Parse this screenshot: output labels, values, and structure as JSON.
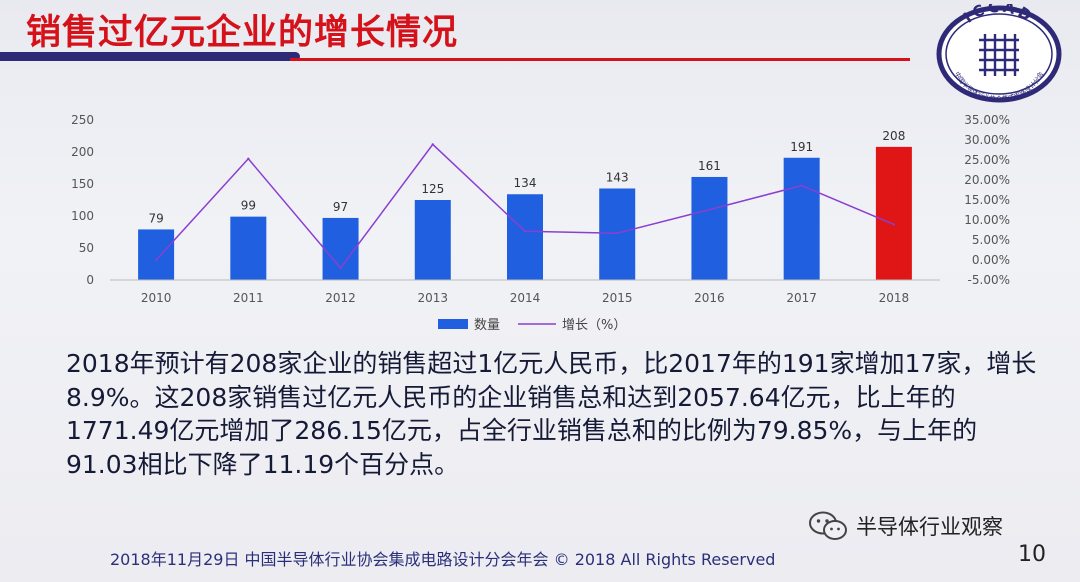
{
  "slide": {
    "title": "销售过亿元企业的增长情况",
    "logo_text": "ICCAD",
    "logo_caption": "中国半导体行业协会集成电路设计分会",
    "summary": "2018年预计有208家企业的销售超过1亿元人民币，比2017年的191家增加17家，增长8.9%。这208家销售过亿元人民币的企业销售总和达到2057.64亿元，比上年的1771.49亿元增加了286.15亿元，占全行业销售总和的比例为79.85%，与上年的91.03相比下降了11.19个百分点。",
    "watermark": "半导体行业观察",
    "footer": "2018年11月29日   中国半导体行业协会集成电路设计分会年会 © 2018 All Rights Reserved",
    "page_number": "10"
  },
  "colors": {
    "title_red": "#d5121a",
    "bar_blue": "#1f5fe0",
    "bar_highlight_red": "#e01616",
    "line_purple": "#8a3fd0",
    "accent_navy": "#2f2a78"
  },
  "chart_data": {
    "type": "bar",
    "categories": [
      "2010",
      "2011",
      "2012",
      "2013",
      "2014",
      "2015",
      "2016",
      "2017",
      "2018"
    ],
    "series": [
      {
        "name": "数量",
        "type": "bar",
        "axis": "left",
        "values": [
          79,
          99,
          97,
          125,
          134,
          143,
          161,
          191,
          208
        ],
        "highlight_index": 8
      },
      {
        "name": "增长（%）",
        "type": "line",
        "axis": "right",
        "values": [
          0.0,
          25.3,
          -2.0,
          28.9,
          7.2,
          6.7,
          12.6,
          18.6,
          8.9
        ]
      }
    ],
    "ylim_left": [
      0,
      250
    ],
    "yticks_left": [
      "0",
      "50",
      "100",
      "150",
      "200",
      "250"
    ],
    "ylim_right": [
      -5,
      35
    ],
    "yticks_right": [
      "-5.00%",
      "0.00%",
      "5.00%",
      "10.00%",
      "15.00%",
      "20.00%",
      "25.00%",
      "30.00%",
      "35.00%"
    ],
    "data_labels": [
      "79",
      "99",
      "97",
      "125",
      "134",
      "143",
      "161",
      "191",
      "208"
    ],
    "legend": [
      "数量",
      "增长（%）"
    ],
    "legend_position": "bottom",
    "grid": false
  }
}
